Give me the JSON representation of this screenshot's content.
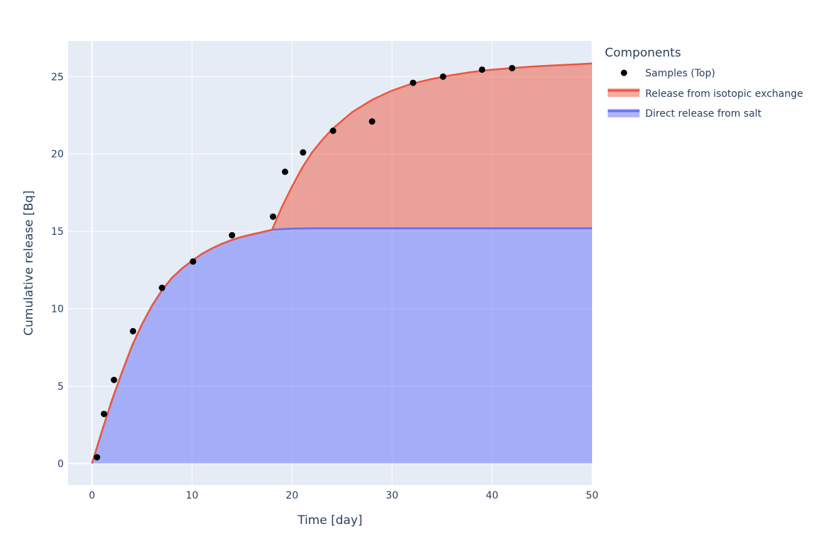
{
  "chart_data": {
    "type": "area",
    "xlabel": "Time [day]",
    "ylabel": "Cumulative release [Bq]",
    "xlim": [
      -2.4,
      50
    ],
    "ylim": [
      -1.4,
      27.3
    ],
    "x_ticks": [
      0,
      10,
      20,
      30,
      40,
      50
    ],
    "y_ticks": [
      0,
      5,
      10,
      15,
      20,
      25
    ],
    "grid": true,
    "legend": {
      "title": "Components",
      "placement": "right",
      "entries": [
        "Samples (Top)",
        "Release from isotopic exchange",
        "Direct release from salt"
      ]
    },
    "colors": {
      "plot_bg": "#E5ECF6",
      "grid": "#ffffff",
      "salt_fill": "rgba(99,110,250,0.5)",
      "salt_line": "#636efa",
      "exchange_fill": "rgba(239,85,59,0.5)",
      "exchange_line": "#EF553B",
      "samples": "#000000"
    },
    "series": [
      {
        "name": "Direct release from salt",
        "kind": "area",
        "x": [
          0,
          1,
          2,
          3,
          4,
          5,
          6,
          7,
          8,
          9,
          10,
          11,
          12,
          13,
          14,
          15,
          16,
          17,
          18,
          19,
          20,
          22,
          25,
          30,
          35,
          40,
          45,
          50
        ],
        "y": [
          0,
          2.1,
          4.1,
          5.9,
          7.6,
          9.0,
          10.2,
          11.2,
          12.0,
          12.6,
          13.1,
          13.55,
          13.9,
          14.2,
          14.45,
          14.65,
          14.8,
          14.95,
          15.1,
          15.15,
          15.18,
          15.2,
          15.2,
          15.2,
          15.2,
          15.2,
          15.2,
          15.2
        ]
      },
      {
        "name": "Release from isotopic exchange",
        "kind": "area",
        "x": [
          0,
          1,
          2,
          3,
          4,
          5,
          6,
          7,
          8,
          9,
          10,
          11,
          12,
          13,
          14,
          15,
          16,
          17,
          18,
          19,
          20,
          21,
          22,
          23,
          24,
          26,
          28,
          30,
          32,
          34,
          36,
          38,
          40,
          42,
          44,
          46,
          48,
          50
        ],
        "y": [
          0,
          2.1,
          4.1,
          5.9,
          7.6,
          9.0,
          10.2,
          11.2,
          12.0,
          12.6,
          13.1,
          13.55,
          13.9,
          14.2,
          14.45,
          14.65,
          14.8,
          14.95,
          15.1,
          16.6,
          17.9,
          19.1,
          20.1,
          20.9,
          21.6,
          22.7,
          23.5,
          24.1,
          24.55,
          24.85,
          25.1,
          25.3,
          25.45,
          25.55,
          25.65,
          25.72,
          25.78,
          25.85
        ]
      },
      {
        "name": "Samples (Top)",
        "kind": "scatter",
        "x": [
          0.5,
          1.2,
          2.2,
          4.1,
          7.0,
          10.1,
          14.0,
          18.1,
          19.3,
          21.1,
          24.1,
          28.0,
          32.1,
          35.1,
          39.0,
          42.0
        ],
        "y": [
          0.4,
          3.2,
          5.4,
          8.55,
          11.35,
          13.05,
          14.75,
          15.95,
          18.85,
          20.1,
          21.5,
          22.1,
          24.6,
          25.0,
          25.45,
          25.55
        ]
      }
    ]
  }
}
